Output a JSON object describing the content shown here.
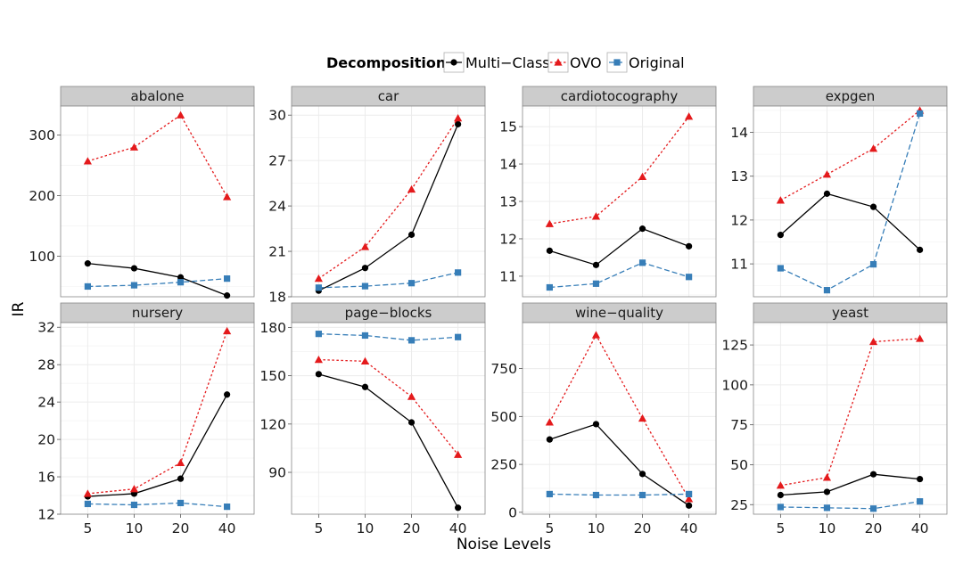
{
  "legend": {
    "title": "Decomposition",
    "entries": [
      {
        "label": "Multi−Class",
        "color": "#000000",
        "marker": "circle",
        "dash": "solid"
      },
      {
        "label": "OVO",
        "color": "#e41a1c",
        "marker": "triangle",
        "dash": "dotted"
      },
      {
        "label": "Original",
        "color": "#377eb8",
        "marker": "square",
        "dash": "dashed"
      }
    ]
  },
  "xlabel": "Noise Levels",
  "ylabel": "IR",
  "colors": {
    "panel_bg": "#ffffff",
    "strip_bg": "#cccccc",
    "grid": "#ececec",
    "border": "#888888"
  },
  "chart_data": {
    "type": "line",
    "categories": [
      "5",
      "10",
      "20",
      "40"
    ],
    "series_names": [
      "Multi−Class",
      "OVO",
      "Original"
    ],
    "panels": [
      {
        "title": "abalone",
        "ylim": [
          33,
          348
        ],
        "yticks": [
          100,
          200,
          300
        ],
        "series": [
          {
            "name": "Multi−Class",
            "values": [
              88,
              80,
              65,
              35
            ]
          },
          {
            "name": "OVO",
            "values": [
              257,
              280,
              333,
              198
            ]
          },
          {
            "name": "Original",
            "values": [
              50,
              52,
              57,
              63
            ]
          }
        ]
      },
      {
        "title": "car",
        "ylim": [
          18.0,
          30.6
        ],
        "yticks": [
          18,
          21,
          24,
          27,
          30
        ],
        "series": [
          {
            "name": "Multi−Class",
            "values": [
              18.4,
              19.9,
              22.1,
              29.4
            ]
          },
          {
            "name": "OVO",
            "values": [
              19.2,
              21.3,
              25.1,
              29.8
            ]
          },
          {
            "name": "Original",
            "values": [
              18.6,
              18.7,
              18.9,
              19.6
            ]
          }
        ]
      },
      {
        "title": "cardiotocography",
        "ylim": [
          10.45,
          15.55
        ],
        "yticks": [
          11,
          12,
          13,
          14,
          15
        ],
        "series": [
          {
            "name": "Multi−Class",
            "values": [
              11.68,
              11.3,
              12.27,
              11.8
            ]
          },
          {
            "name": "OVO",
            "values": [
              12.4,
              12.6,
              13.66,
              15.27
            ]
          },
          {
            "name": "Original",
            "values": [
              10.7,
              10.8,
              11.36,
              10.98
            ]
          }
        ]
      },
      {
        "title": "expgen",
        "ylim": [
          10.25,
          14.6
        ],
        "yticks": [
          11,
          12,
          13,
          14
        ],
        "series": [
          {
            "name": "Multi−Class",
            "values": [
              11.66,
              12.6,
              12.3,
              11.32
            ]
          },
          {
            "name": "OVO",
            "values": [
              12.45,
              13.04,
              13.63,
              14.5
            ]
          },
          {
            "name": "Original",
            "values": [
              10.9,
              10.4,
              10.99,
              14.43
            ]
          }
        ]
      },
      {
        "title": "nursery",
        "ylim": [
          12.0,
          32.5
        ],
        "yticks": [
          12,
          16,
          20,
          24,
          28,
          32
        ],
        "series": [
          {
            "name": "Multi−Class",
            "values": [
              13.9,
              14.2,
              15.8,
              24.8
            ]
          },
          {
            "name": "OVO",
            "values": [
              14.2,
              14.7,
              17.5,
              31.6
            ]
          },
          {
            "name": "Original",
            "values": [
              13.1,
              13.0,
              13.2,
              12.8
            ]
          }
        ]
      },
      {
        "title": "page−blocks",
        "ylim": [
          64,
          183
        ],
        "yticks": [
          90,
          120,
          150,
          180
        ],
        "series": [
          {
            "name": "Multi−Class",
            "values": [
              151,
              143,
              121,
              68
            ]
          },
          {
            "name": "OVO",
            "values": [
              160,
              159,
              137,
              101
            ]
          },
          {
            "name": "Original",
            "values": [
              176,
              175,
              172,
              174
            ]
          }
        ]
      },
      {
        "title": "wine−quality",
        "ylim": [
          -10,
          990
        ],
        "yticks": [
          0,
          250,
          500,
          750
        ],
        "series": [
          {
            "name": "Multi−Class",
            "values": [
              380,
              460,
              200,
              35
            ]
          },
          {
            "name": "OVO",
            "values": [
              470,
              925,
              490,
              70
            ]
          },
          {
            "name": "Original",
            "values": [
              95,
              90,
              90,
              95
            ]
          }
        ]
      },
      {
        "title": "yeast",
        "ylim": [
          19,
          139
        ],
        "yticks": [
          25,
          50,
          75,
          100,
          125
        ],
        "series": [
          {
            "name": "Multi−Class",
            "values": [
              31,
              33,
              44,
              41
            ]
          },
          {
            "name": "OVO",
            "values": [
              37,
              42,
              127,
              129
            ]
          },
          {
            "name": "Original",
            "values": [
              23.5,
              23,
              22.5,
              27
            ]
          }
        ]
      }
    ]
  }
}
